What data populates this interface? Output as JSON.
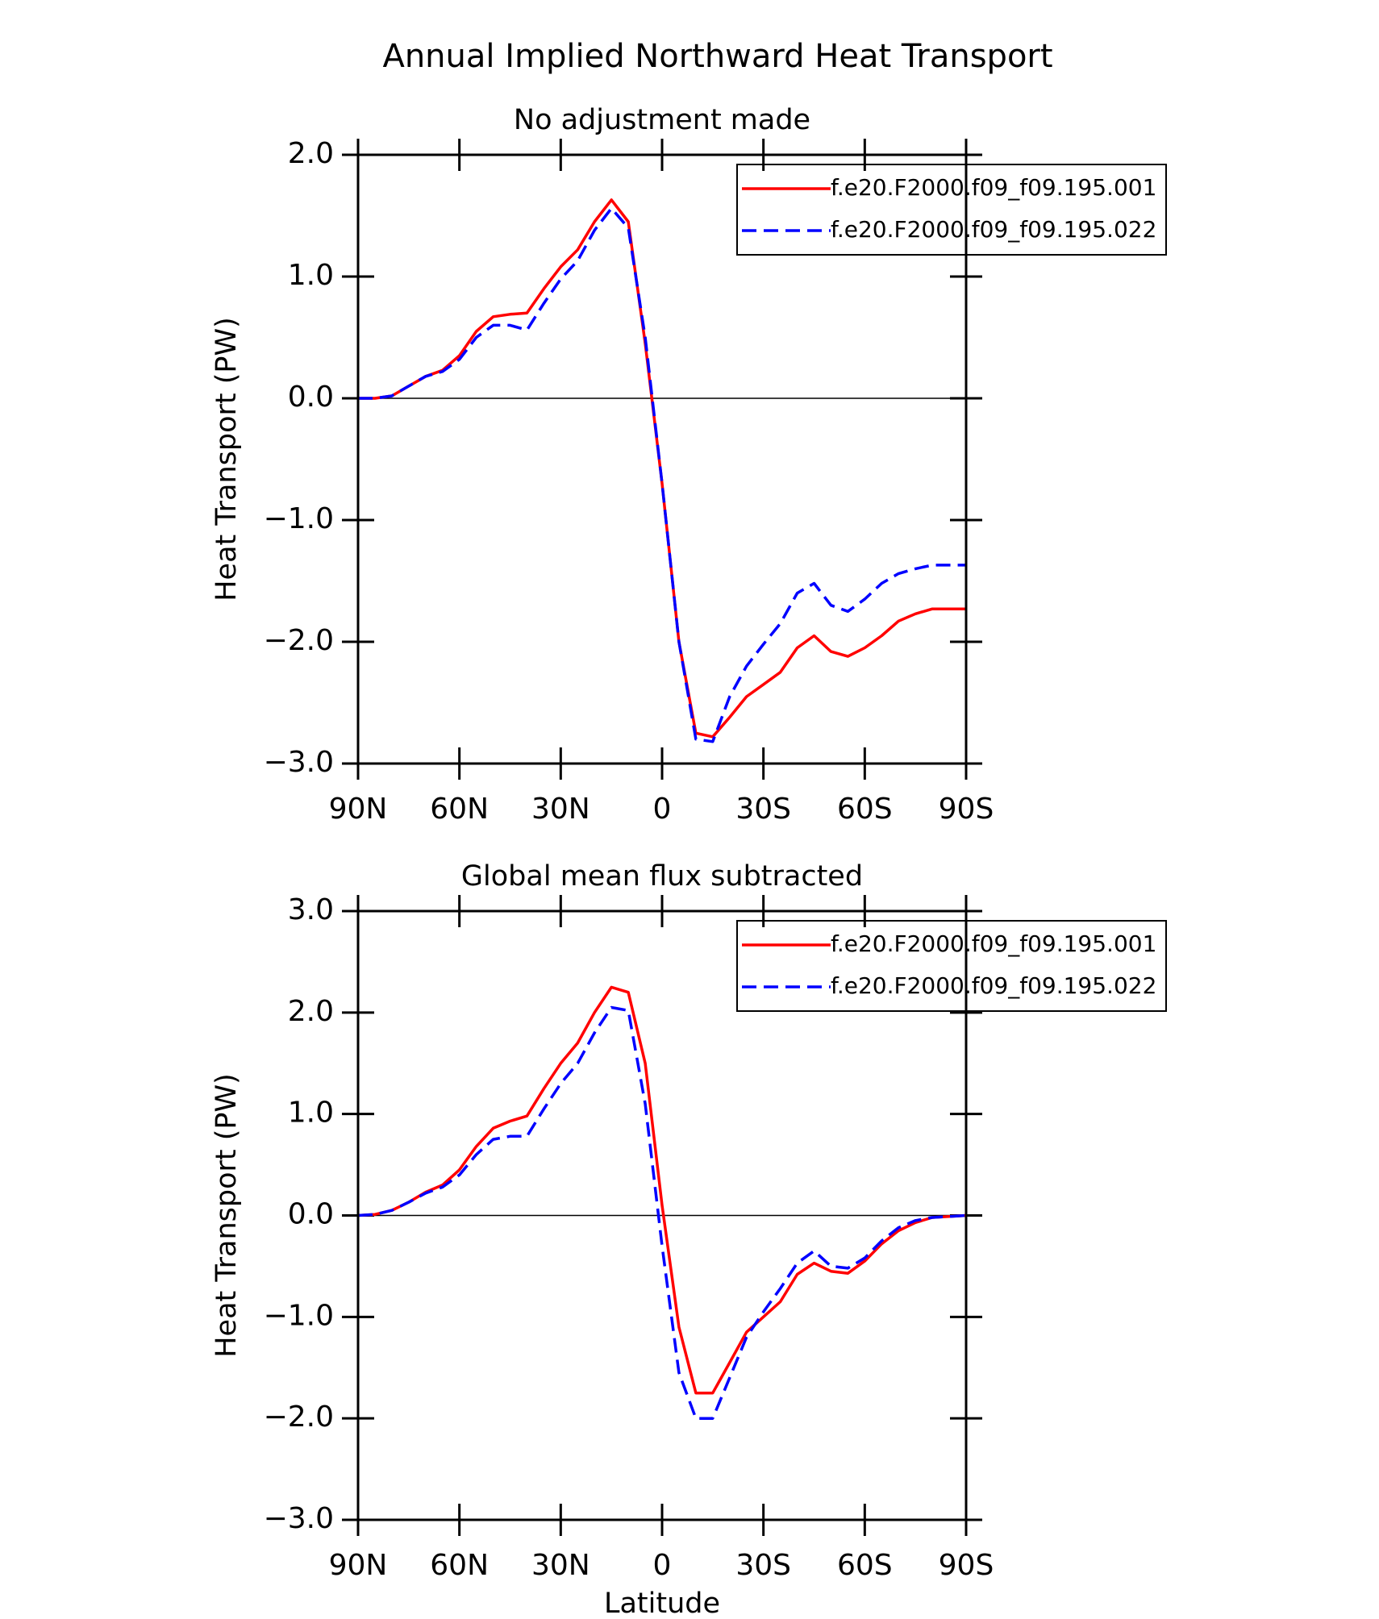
{
  "title": "Annual Implied Northward Heat Transport",
  "chart_data": [
    {
      "type": "line",
      "title": "No adjustment made",
      "ylabel": "Heat Transport (PW)",
      "x": [
        90,
        85,
        80,
        75,
        70,
        65,
        60,
        55,
        50,
        45,
        40,
        35,
        30,
        25,
        20,
        15,
        10,
        5,
        0,
        -5,
        -10,
        -15,
        -20,
        -25,
        -30,
        -35,
        -40,
        -45,
        -50,
        -55,
        -60,
        -65,
        -70,
        -75,
        -80,
        -85,
        -90
      ],
      "xlim": [
        90,
        -90
      ],
      "xticks": [
        {
          "value": 90,
          "label": "90N"
        },
        {
          "value": 60,
          "label": "60N"
        },
        {
          "value": 30,
          "label": "30N"
        },
        0,
        {
          "value": -30,
          "label": "30S"
        },
        {
          "value": -60,
          "label": "60S"
        },
        {
          "value": -90,
          "label": "90S"
        }
      ],
      "ylim": [
        -3,
        2
      ],
      "yticks": [
        {
          "value": -3,
          "label": "−3.0"
        },
        {
          "value": -2,
          "label": "−2.0"
        },
        {
          "value": -1,
          "label": "−1.0"
        },
        {
          "value": 0,
          "label": "0.0"
        },
        {
          "value": 1,
          "label": "1.0"
        },
        {
          "value": 2,
          "label": "2.0"
        }
      ],
      "hline": 0,
      "legend": "upper right",
      "series": [
        {
          "name": "f.e20.F2000.f09_f09.195.001",
          "color": "#ff0000",
          "dash": false,
          "values": [
            0,
            0,
            0.02,
            0.1,
            0.18,
            0.23,
            0.35,
            0.55,
            0.67,
            0.69,
            0.7,
            0.9,
            1.08,
            1.22,
            1.45,
            1.63,
            1.45,
            0.45,
            -0.7,
            -2.0,
            -2.75,
            -2.78,
            -2.62,
            -2.45,
            -2.35,
            -2.25,
            -2.05,
            -1.95,
            -2.08,
            -2.12,
            -2.05,
            -1.95,
            -1.83,
            -1.77,
            -1.73,
            -1.73,
            -1.73
          ]
        },
        {
          "name": "f.e20.F2000.f09_f09.195.022",
          "color": "#0000ff",
          "dash": true,
          "values": [
            0,
            0,
            0.02,
            0.1,
            0.18,
            0.22,
            0.32,
            0.5,
            0.6,
            0.6,
            0.56,
            0.78,
            0.98,
            1.13,
            1.38,
            1.56,
            1.4,
            0.5,
            -0.7,
            -2.0,
            -2.8,
            -2.82,
            -2.45,
            -2.2,
            -2.02,
            -1.85,
            -1.6,
            -1.52,
            -1.7,
            -1.75,
            -1.65,
            -1.52,
            -1.44,
            -1.4,
            -1.37,
            -1.37,
            -1.37
          ]
        }
      ]
    },
    {
      "type": "line",
      "title": "Global mean flux subtracted",
      "ylabel": "Heat Transport (PW)",
      "xlabel": "Latitude",
      "x": [
        90,
        85,
        80,
        75,
        70,
        65,
        60,
        55,
        50,
        45,
        40,
        35,
        30,
        25,
        20,
        15,
        10,
        5,
        0,
        -5,
        -10,
        -15,
        -20,
        -25,
        -30,
        -35,
        -40,
        -45,
        -50,
        -55,
        -60,
        -65,
        -70,
        -75,
        -80,
        -85,
        -90
      ],
      "xlim": [
        90,
        -90
      ],
      "xticks": [
        {
          "value": 90,
          "label": "90N"
        },
        {
          "value": 60,
          "label": "60N"
        },
        {
          "value": 30,
          "label": "30N"
        },
        0,
        {
          "value": -30,
          "label": "30S"
        },
        {
          "value": -60,
          "label": "60S"
        },
        {
          "value": -90,
          "label": "90S"
        }
      ],
      "ylim": [
        -3,
        3
      ],
      "yticks": [
        {
          "value": -3,
          "label": "−3.0"
        },
        {
          "value": -2,
          "label": "−2.0"
        },
        {
          "value": -1,
          "label": "−1.0"
        },
        {
          "value": 0,
          "label": "0.0"
        },
        {
          "value": 1,
          "label": "1.0"
        },
        {
          "value": 2,
          "label": "2.0"
        },
        {
          "value": 3,
          "label": "3.0"
        }
      ],
      "hline": 0,
      "legend": "upper right",
      "series": [
        {
          "name": "f.e20.F2000.f09_f09.195.001",
          "color": "#ff0000",
          "dash": false,
          "values": [
            0,
            0.01,
            0.05,
            0.13,
            0.23,
            0.3,
            0.45,
            0.68,
            0.86,
            0.93,
            0.98,
            1.25,
            1.5,
            1.7,
            2.0,
            2.25,
            2.2,
            1.5,
            0.1,
            -1.1,
            -1.75,
            -1.75,
            -1.45,
            -1.15,
            -1.0,
            -0.85,
            -0.58,
            -0.47,
            -0.55,
            -0.57,
            -0.45,
            -0.28,
            -0.15,
            -0.07,
            -0.02,
            -0.01,
            0
          ]
        },
        {
          "name": "f.e20.F2000.f09_f09.195.022",
          "color": "#0000ff",
          "dash": true,
          "values": [
            0,
            0.01,
            0.05,
            0.13,
            0.22,
            0.28,
            0.4,
            0.6,
            0.75,
            0.78,
            0.78,
            1.05,
            1.3,
            1.5,
            1.8,
            2.05,
            2.02,
            1.1,
            -0.3,
            -1.55,
            -2.0,
            -2.0,
            -1.6,
            -1.2,
            -0.95,
            -0.72,
            -0.47,
            -0.35,
            -0.5,
            -0.52,
            -0.42,
            -0.25,
            -0.12,
            -0.05,
            -0.02,
            -0.01,
            0
          ]
        }
      ]
    }
  ]
}
